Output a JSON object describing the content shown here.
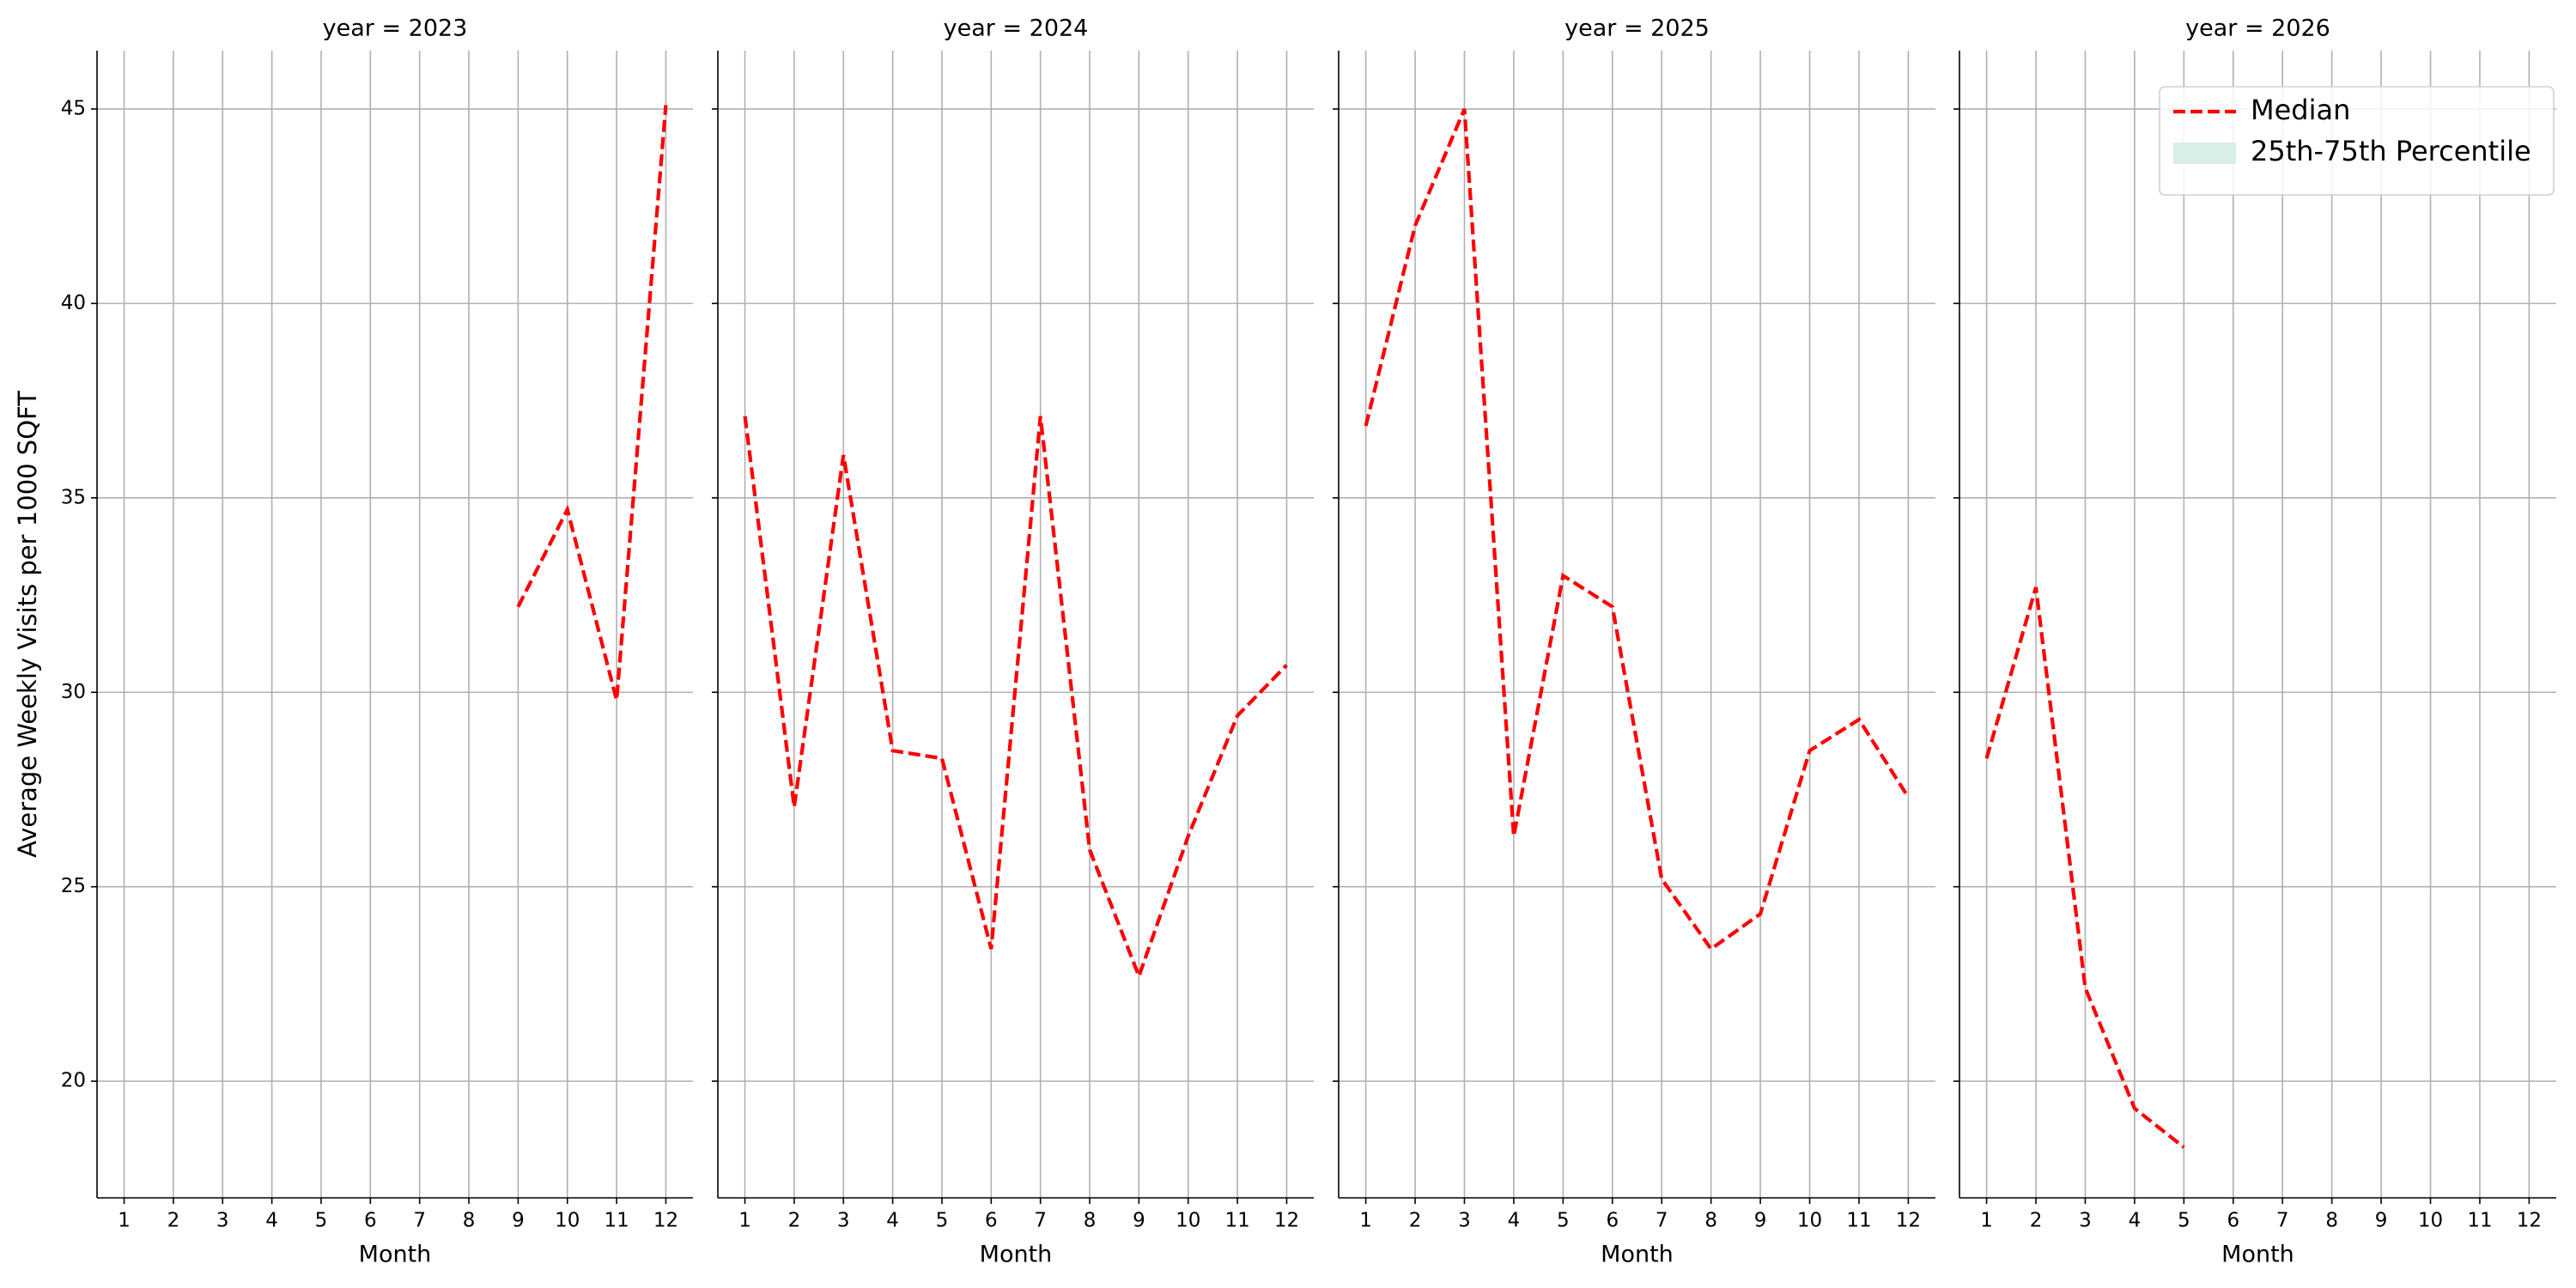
{
  "chart_data": [
    {
      "type": "line",
      "title": "year = 2023",
      "x_label": "Month",
      "y_label": "Average Weekly Visits per 1000 SQFT",
      "x": [
        1,
        2,
        3,
        4,
        5,
        6,
        7,
        8,
        9,
        10,
        11,
        12
      ],
      "xlim": [
        0.45,
        12.55
      ],
      "xticks": [
        1,
        2,
        3,
        4,
        5,
        6,
        7,
        8,
        9,
        10,
        11,
        12
      ],
      "ylim": [
        17,
        46.5
      ],
      "yticks": [
        20,
        25,
        30,
        35,
        40,
        45
      ],
      "grid": true,
      "series": [
        {
          "name": "Median",
          "color": "#ff0000",
          "values": [
            null,
            null,
            null,
            null,
            null,
            null,
            null,
            null,
            32.2,
            34.7,
            29.8,
            45.1
          ]
        }
      ]
    },
    {
      "type": "line",
      "title": "year = 2024",
      "x_label": "Month",
      "x": [
        1,
        2,
        3,
        4,
        5,
        6,
        7,
        8,
        9,
        10,
        11,
        12
      ],
      "xlim": [
        0.45,
        12.55
      ],
      "xticks": [
        1,
        2,
        3,
        4,
        5,
        6,
        7,
        8,
        9,
        10,
        11,
        12
      ],
      "ylim": [
        17,
        46.5
      ],
      "yticks": [
        20,
        25,
        30,
        35,
        40,
        45
      ],
      "grid": true,
      "series": [
        {
          "name": "Median",
          "color": "#ff0000",
          "values": [
            37.1,
            27.05,
            36.1,
            28.5,
            28.3,
            23.4,
            37.1,
            25.95,
            22.7,
            26.3,
            29.4,
            30.7
          ]
        }
      ]
    },
    {
      "type": "line",
      "title": "year = 2025",
      "x_label": "Month",
      "x": [
        1,
        2,
        3,
        4,
        5,
        6,
        7,
        8,
        9,
        10,
        11,
        12
      ],
      "xlim": [
        0.45,
        12.55
      ],
      "xticks": [
        1,
        2,
        3,
        4,
        5,
        6,
        7,
        8,
        9,
        10,
        11,
        12
      ],
      "ylim": [
        17,
        46.5
      ],
      "yticks": [
        20,
        25,
        30,
        35,
        40,
        45
      ],
      "grid": true,
      "series": [
        {
          "name": "Median",
          "color": "#ff0000",
          "values": [
            36.85,
            42.0,
            45.0,
            26.3,
            33.0,
            32.2,
            25.2,
            23.4,
            24.3,
            28.5,
            29.3,
            27.3
          ]
        }
      ]
    },
    {
      "type": "line",
      "title": "year = 2026",
      "x_label": "Month",
      "x": [
        1,
        2,
        3,
        4,
        5,
        6,
        7,
        8,
        9,
        10,
        11,
        12
      ],
      "xlim": [
        0.45,
        12.55
      ],
      "xticks": [
        1,
        2,
        3,
        4,
        5,
        6,
        7,
        8,
        9,
        10,
        11,
        12
      ],
      "ylim": [
        17,
        46.5
      ],
      "yticks": [
        20,
        25,
        30,
        35,
        40,
        45
      ],
      "grid": true,
      "legend": "upper right",
      "series": [
        {
          "name": "Median",
          "color": "#ff0000",
          "values": [
            28.3,
            32.7,
            22.4,
            19.3,
            18.3,
            null,
            null,
            null,
            null,
            null,
            null,
            null
          ]
        },
        {
          "name": "25th-75th Percentile",
          "color": "#d9eee5",
          "values": [
            null,
            null,
            null,
            null,
            null,
            null,
            null,
            null,
            null,
            null,
            null,
            null
          ]
        }
      ]
    }
  ]
}
